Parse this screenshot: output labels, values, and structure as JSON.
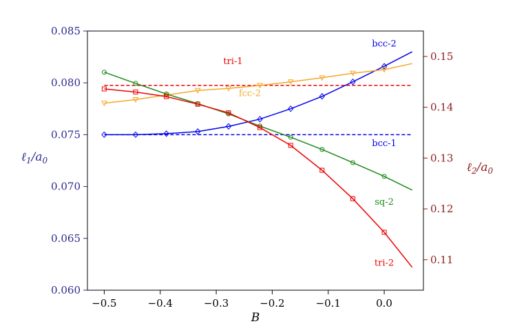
{
  "chart_data": {
    "type": "line",
    "title": "",
    "xlabel": "B",
    "ylabel_left": "ℓ1/a0",
    "ylabel_right": "ℓ2/a0",
    "xlim": [
      -0.53,
      0.07
    ],
    "ylim_left": [
      0.06,
      0.085
    ],
    "ylim_right": [
      0.104,
      0.155
    ],
    "x_ticks": [
      -0.5,
      -0.4,
      -0.3,
      -0.2,
      -0.1,
      0.0
    ],
    "x_tick_labels": [
      "−0.5",
      "−0.4",
      "−0.3",
      "−0.2",
      "−0.1",
      "0.0"
    ],
    "y_left_ticks": [
      0.06,
      0.065,
      0.07,
      0.075,
      0.08,
      0.085
    ],
    "y_left_tick_labels": [
      "0.060",
      "0.065",
      "0.070",
      "0.075",
      "0.080",
      "0.085"
    ],
    "y_right_ticks": [
      0.11,
      0.12,
      0.13,
      0.14,
      0.15
    ],
    "y_right_tick_labels": [
      "0.11",
      "0.12",
      "0.13",
      "0.14",
      "0.15"
    ],
    "colors": {
      "left_axis": "#2b2b8c",
      "right_axis": "#8b1a1a",
      "bcc": "#0000ee",
      "tri": "#ee0000",
      "sq": "#1a8a1a",
      "fcc": "#f5a623"
    },
    "series": [
      {
        "name": "bcc-2",
        "axis": "left",
        "colorKey": "bcc",
        "style": "solid",
        "marker": "diamond",
        "x": [
          -0.5,
          -0.444,
          -0.389,
          -0.333,
          -0.278,
          -0.222,
          -0.167,
          -0.111,
          -0.056,
          0.0,
          0.05
        ],
        "y": [
          0.075,
          0.075,
          0.0751,
          0.0753,
          0.0758,
          0.0765,
          0.0775,
          0.0787,
          0.0801,
          0.0816,
          0.083
        ],
        "markers": [
          -0.5,
          -0.444,
          -0.389,
          -0.333,
          -0.278,
          -0.222,
          -0.167,
          -0.111,
          -0.056,
          0.0
        ]
      },
      {
        "name": "bcc-1",
        "axis": "left",
        "colorKey": "bcc",
        "style": "dashed",
        "marker": "none",
        "x": [
          -0.5,
          0.05
        ],
        "y": [
          0.075,
          0.075
        ],
        "markers": []
      },
      {
        "name": "tri-1",
        "axis": "right",
        "colorKey": "tri",
        "style": "dashed",
        "marker": "none",
        "x": [
          -0.5,
          0.05
        ],
        "y": [
          0.1443,
          0.1443
        ],
        "markers": []
      },
      {
        "name": "fcc-2",
        "axis": "right",
        "colorKey": "fcc",
        "style": "solid",
        "marker": "triangle-down",
        "x": [
          -0.5,
          -0.444,
          -0.389,
          -0.333,
          -0.278,
          -0.222,
          -0.167,
          -0.111,
          -0.056,
          0.0,
          0.05
        ],
        "y": [
          0.1408,
          0.1415,
          0.1424,
          0.1433,
          0.1437,
          0.1443,
          0.145,
          0.1458,
          0.1467,
          0.1474,
          0.1486
        ],
        "markers": [
          -0.5,
          -0.444,
          -0.389,
          -0.333,
          -0.278,
          -0.222,
          -0.167,
          -0.111,
          -0.056,
          0.0
        ]
      },
      {
        "name": "sq-2",
        "axis": "right",
        "colorKey": "sq",
        "style": "solid",
        "marker": "circle",
        "x": [
          -0.5,
          -0.444,
          -0.389,
          -0.333,
          -0.278,
          -0.222,
          -0.167,
          -0.111,
          -0.056,
          0.0,
          0.05
        ],
        "y": [
          0.1469,
          0.1447,
          0.1426,
          0.1407,
          0.1387,
          0.1363,
          0.1341,
          0.1317,
          0.1291,
          0.1264,
          0.1237
        ],
        "markers": [
          -0.5,
          -0.444,
          -0.389,
          -0.333,
          -0.278,
          -0.222,
          -0.167,
          -0.111,
          -0.056,
          0.0
        ]
      },
      {
        "name": "tri-2",
        "axis": "right",
        "colorKey": "tri",
        "style": "solid",
        "marker": "square",
        "x": [
          -0.5,
          -0.444,
          -0.389,
          -0.333,
          -0.278,
          -0.222,
          -0.167,
          -0.111,
          -0.056,
          0.0,
          0.05
        ],
        "y": [
          0.1436,
          0.143,
          0.1421,
          0.1406,
          0.1389,
          0.136,
          0.1325,
          0.1276,
          0.122,
          0.1154,
          0.1085
        ],
        "markers": [
          -0.5,
          -0.444,
          -0.389,
          -0.333,
          -0.278,
          -0.222,
          -0.167,
          -0.111,
          -0.056,
          0.0
        ]
      }
    ],
    "annotations": [
      {
        "text": "bcc-2",
        "colorKey": "bcc",
        "x": 0.0,
        "y": 0.0835,
        "axis": "left"
      },
      {
        "text": "bcc-1",
        "colorKey": "bcc",
        "x": 0.0,
        "y": 0.0739,
        "axis": "left"
      },
      {
        "text": "tri-1",
        "colorKey": "tri",
        "x": -0.27,
        "y": 0.1485,
        "axis": "right"
      },
      {
        "text": "fcc-2",
        "colorKey": "fcc",
        "x": -0.24,
        "y": 0.1422,
        "axis": "right"
      },
      {
        "text": "sq-2",
        "colorKey": "sq",
        "x": 0.0,
        "y": 0.1208,
        "axis": "right"
      },
      {
        "text": "tri-2",
        "colorKey": "tri",
        "x": 0.0,
        "y": 0.1088,
        "axis": "right"
      }
    ]
  }
}
